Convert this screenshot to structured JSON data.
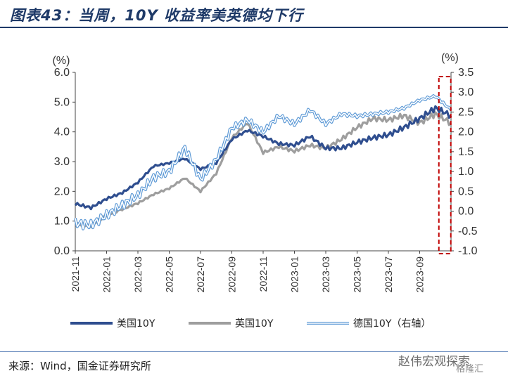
{
  "title": "图表43：当周，10Y 收益率美英德均下行",
  "source": "来源：Wind，国金证券研究所",
  "watermark": "赵伟宏观探索",
  "watermark2": "格隆汇",
  "chart_data": {
    "type": "line",
    "left_axis": {
      "unit": "(%)",
      "ylim": [
        0,
        6
      ],
      "ticks": [
        "0.0",
        "1.0",
        "2.0",
        "3.0",
        "4.0",
        "5.0",
        "6.0"
      ]
    },
    "right_axis": {
      "unit": "(%)",
      "ylim": [
        -1,
        3.5
      ],
      "ticks": [
        "-1.0",
        "-0.5",
        "0.0",
        "0.5",
        "1.0",
        "1.5",
        "2.0",
        "2.5",
        "3.0",
        "3.5"
      ]
    },
    "x_ticks": [
      "2021-11",
      "2022-01",
      "2022-03",
      "2022-05",
      "2022-07",
      "2022-09",
      "2022-11",
      "2023-01",
      "2023-03",
      "2023-05",
      "2023-07",
      "2023-09"
    ],
    "x_range": [
      "2021-11",
      "2023-11"
    ],
    "series": [
      {
        "name": "美国10Y",
        "axis": "left",
        "color": "#2f4e8f",
        "x": [
          "2021-11",
          "2021-12",
          "2022-01",
          "2022-02",
          "2022-03",
          "2022-04",
          "2022-05",
          "2022-06",
          "2022-07",
          "2022-08",
          "2022-09",
          "2022-10",
          "2022-11",
          "2022-12",
          "2023-01",
          "2023-02",
          "2023-03",
          "2023-04",
          "2023-05",
          "2023-06",
          "2023-07",
          "2023-08",
          "2023-09",
          "2023-10",
          "2023-11"
        ],
        "values": [
          1.58,
          1.45,
          1.75,
          1.95,
          2.3,
          2.85,
          2.95,
          3.1,
          2.75,
          2.95,
          3.75,
          4.05,
          3.85,
          3.6,
          3.55,
          3.85,
          3.45,
          3.45,
          3.65,
          3.8,
          3.9,
          4.15,
          4.45,
          4.8,
          4.55
        ]
      },
      {
        "name": "英国10Y",
        "axis": "left",
        "color": "#9e9e9e",
        "x": [
          "2021-11",
          "2021-12",
          "2022-01",
          "2022-02",
          "2022-03",
          "2022-04",
          "2022-05",
          "2022-06",
          "2022-07",
          "2022-08",
          "2022-09",
          "2022-10",
          "2022-11",
          "2022-12",
          "2023-01",
          "2023-02",
          "2023-03",
          "2023-04",
          "2023-05",
          "2023-06",
          "2023-07",
          "2023-08",
          "2023-09",
          "2023-10",
          "2023-11"
        ],
        "values": [
          0.9,
          0.85,
          1.2,
          1.4,
          1.6,
          1.9,
          2.1,
          2.45,
          2.0,
          2.6,
          3.8,
          4.3,
          3.3,
          3.5,
          3.35,
          3.55,
          3.45,
          3.75,
          4.15,
          4.45,
          4.4,
          4.55,
          4.3,
          4.6,
          4.3
        ]
      },
      {
        "name": "德国10Y（右轴）",
        "axis": "right",
        "color": "#5e9ad6",
        "x": [
          "2021-11",
          "2021-12",
          "2022-01",
          "2022-02",
          "2022-03",
          "2022-04",
          "2022-05",
          "2022-06",
          "2022-07",
          "2022-08",
          "2022-09",
          "2022-10",
          "2022-11",
          "2022-12",
          "2023-01",
          "2023-02",
          "2023-03",
          "2023-04",
          "2023-05",
          "2023-06",
          "2023-07",
          "2023-08",
          "2023-09",
          "2023-10",
          "2023-11"
        ],
        "values": [
          -0.3,
          -0.35,
          -0.1,
          0.15,
          0.4,
          0.85,
          1.0,
          1.6,
          0.8,
          1.3,
          2.1,
          2.3,
          2.0,
          2.4,
          2.2,
          2.55,
          2.2,
          2.45,
          2.4,
          2.45,
          2.5,
          2.6,
          2.8,
          2.9,
          2.55
        ]
      }
    ],
    "highlight": "dashed red box over latest weeks"
  }
}
